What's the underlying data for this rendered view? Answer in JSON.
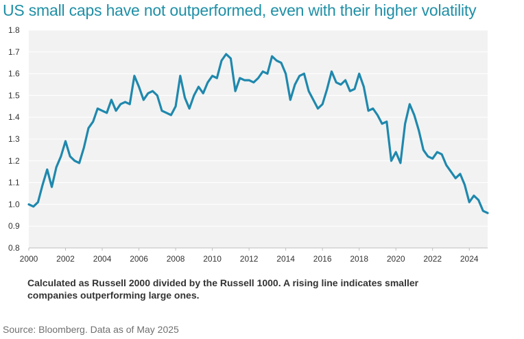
{
  "colors": {
    "title": "#1f8fa6",
    "line": "#1f88ad",
    "plot_bg": "#f2f2f2",
    "grid": "#ffffff"
  },
  "chart_data": {
    "type": "line",
    "title": "US small caps have not outperformed, even with their higher volatility",
    "xlabel": "",
    "ylabel": "",
    "xlim": [
      2000,
      2025
    ],
    "ylim": [
      0.8,
      1.8
    ],
    "y_ticks": [
      "0.8",
      "0.9",
      "1.0",
      "1.1",
      "1.2",
      "1.3",
      "1.4",
      "1.5",
      "1.6",
      "1.7",
      "1.8"
    ],
    "x_ticks": [
      "2000",
      "2002",
      "2004",
      "2006",
      "2008",
      "2010",
      "2012",
      "2014",
      "2016",
      "2018",
      "2020",
      "2022",
      "2024"
    ],
    "series": [
      {
        "name": "Russell 2000 / Russell 1000",
        "x": [
          2000.0,
          2000.25,
          2000.5,
          2000.75,
          2001.0,
          2001.25,
          2001.5,
          2001.75,
          2002.0,
          2002.25,
          2002.5,
          2002.75,
          2003.0,
          2003.25,
          2003.5,
          2003.75,
          2004.0,
          2004.25,
          2004.5,
          2004.75,
          2005.0,
          2005.25,
          2005.5,
          2005.75,
          2006.0,
          2006.25,
          2006.5,
          2006.75,
          2007.0,
          2007.25,
          2007.5,
          2007.75,
          2008.0,
          2008.25,
          2008.5,
          2008.75,
          2009.0,
          2009.25,
          2009.5,
          2009.75,
          2010.0,
          2010.25,
          2010.5,
          2010.75,
          2011.0,
          2011.25,
          2011.5,
          2011.75,
          2012.0,
          2012.25,
          2012.5,
          2012.75,
          2013.0,
          2013.25,
          2013.5,
          2013.75,
          2014.0,
          2014.25,
          2014.5,
          2014.75,
          2015.0,
          2015.25,
          2015.5,
          2015.75,
          2016.0,
          2016.25,
          2016.5,
          2016.75,
          2017.0,
          2017.25,
          2017.5,
          2017.75,
          2018.0,
          2018.25,
          2018.5,
          2018.75,
          2019.0,
          2019.25,
          2019.5,
          2019.75,
          2020.0,
          2020.25,
          2020.5,
          2020.75,
          2021.0,
          2021.25,
          2021.5,
          2021.75,
          2022.0,
          2022.25,
          2022.5,
          2022.75,
          2023.0,
          2023.25,
          2023.5,
          2023.75,
          2024.0,
          2024.25,
          2024.5,
          2024.75,
          2025.0
        ],
        "values": [
          1.0,
          0.99,
          1.01,
          1.09,
          1.16,
          1.08,
          1.17,
          1.22,
          1.29,
          1.22,
          1.2,
          1.19,
          1.26,
          1.35,
          1.38,
          1.44,
          1.43,
          1.42,
          1.48,
          1.43,
          1.46,
          1.47,
          1.46,
          1.59,
          1.54,
          1.48,
          1.51,
          1.52,
          1.5,
          1.43,
          1.42,
          1.41,
          1.45,
          1.59,
          1.49,
          1.44,
          1.5,
          1.54,
          1.51,
          1.56,
          1.59,
          1.58,
          1.66,
          1.69,
          1.67,
          1.52,
          1.58,
          1.57,
          1.57,
          1.56,
          1.58,
          1.61,
          1.6,
          1.68,
          1.66,
          1.65,
          1.6,
          1.48,
          1.55,
          1.59,
          1.6,
          1.52,
          1.48,
          1.44,
          1.46,
          1.53,
          1.61,
          1.56,
          1.55,
          1.57,
          1.52,
          1.53,
          1.6,
          1.54,
          1.43,
          1.44,
          1.41,
          1.37,
          1.38,
          1.2,
          1.24,
          1.19,
          1.37,
          1.46,
          1.41,
          1.34,
          1.25,
          1.22,
          1.21,
          1.24,
          1.23,
          1.18,
          1.15,
          1.12,
          1.14,
          1.09,
          1.01,
          1.04,
          1.02,
          0.97,
          0.96
        ]
      }
    ]
  },
  "caption": "Calculated as Russell 2000 divided by the Russell 1000. A rising line indicates smaller companies outperforming large ones.",
  "source": "Source: Bloomberg. Data as of May 2025"
}
